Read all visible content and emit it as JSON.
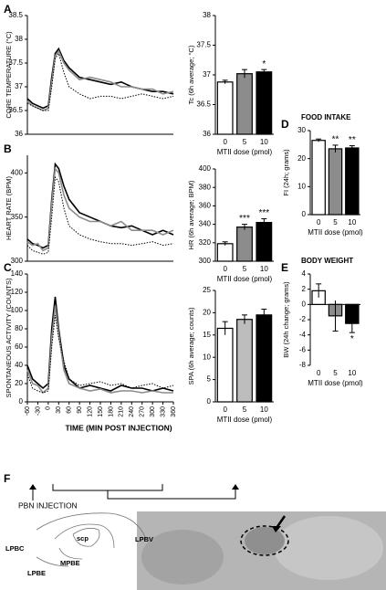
{
  "chart_data": [
    {
      "panel": "A",
      "type": "line",
      "ylabel": "CORE TEMPERATURE (°C)",
      "x": [
        -60,
        -45,
        -30,
        -15,
        0,
        10,
        20,
        30,
        45,
        60,
        90,
        120,
        150,
        180,
        210,
        240,
        270,
        300,
        330,
        360
      ],
      "xlim": [
        -60,
        360
      ],
      "ylim": [
        36,
        38.5
      ],
      "yticks": [
        36,
        36.5,
        37,
        37.5,
        38,
        38.5
      ],
      "series": [
        {
          "color": "#000000",
          "line_style": "solid",
          "values": [
            36.75,
            36.65,
            36.6,
            36.55,
            36.6,
            37.2,
            37.7,
            37.8,
            37.55,
            37.4,
            37.2,
            37.15,
            37.1,
            37.05,
            37.1,
            37.0,
            36.95,
            36.9,
            36.9,
            36.85
          ]
        },
        {
          "color": "#8c8c8c",
          "line_style": "solid",
          "values": [
            36.7,
            36.6,
            36.55,
            36.5,
            36.55,
            37.1,
            37.65,
            37.75,
            37.5,
            37.35,
            37.15,
            37.2,
            37.15,
            37.1,
            37.0,
            37.0,
            36.95,
            36.95,
            36.85,
            36.9
          ]
        },
        {
          "color": "#000000",
          "line_style": "dotted",
          "values": [
            36.65,
            36.6,
            36.55,
            36.5,
            36.5,
            37.0,
            37.6,
            37.7,
            37.3,
            37.0,
            36.85,
            36.75,
            36.8,
            36.8,
            36.75,
            36.8,
            36.85,
            36.8,
            36.75,
            36.8
          ]
        }
      ]
    },
    {
      "type": "bar",
      "ylabel": "Tc (6h average; °C)",
      "xlabel": "MTII dose (pmol)",
      "categories": [
        "0",
        "5",
        "10"
      ],
      "values": [
        36.88,
        37.02,
        37.05
      ],
      "errors": [
        0.03,
        0.07,
        0.04
      ],
      "colors": [
        "#ffffff",
        "#8c8c8c",
        "#000000"
      ],
      "annotations": [
        null,
        null,
        "*"
      ],
      "ylim": [
        36,
        38
      ],
      "yticks": [
        36,
        36.5,
        37,
        37.5,
        38
      ]
    },
    {
      "panel": "B",
      "type": "line",
      "ylabel": "HEART RATE (BPM)",
      "x": [
        -60,
        -45,
        -30,
        -15,
        0,
        10,
        20,
        30,
        45,
        60,
        90,
        120,
        150,
        180,
        210,
        240,
        270,
        300,
        330,
        360
      ],
      "xlim": [
        -60,
        360
      ],
      "ylim": [
        300,
        420
      ],
      "yticks": [
        300,
        350,
        400
      ],
      "series": [
        {
          "color": "#000000",
          "line_style": "solid",
          "values": [
            325,
            320,
            318,
            315,
            318,
            370,
            410,
            405,
            385,
            370,
            355,
            350,
            345,
            340,
            338,
            340,
            335,
            330,
            335,
            330
          ]
        },
        {
          "color": "#8c8c8c",
          "line_style": "solid",
          "values": [
            322,
            318,
            320,
            312,
            315,
            365,
            405,
            400,
            375,
            360,
            350,
            345,
            345,
            340,
            345,
            335,
            335,
            335,
            330,
            335
          ]
        },
        {
          "color": "#000000",
          "line_style": "dotted",
          "values": [
            318,
            312,
            310,
            308,
            310,
            350,
            395,
            390,
            360,
            340,
            330,
            325,
            322,
            320,
            320,
            318,
            320,
            322,
            318,
            320
          ]
        }
      ]
    },
    {
      "type": "bar",
      "ylabel": "HR (6h average; BPM)",
      "xlabel": "MTII dose (pmol)",
      "categories": [
        "0",
        "5",
        "10"
      ],
      "values": [
        319,
        337,
        342
      ],
      "errors": [
        2,
        3,
        4
      ],
      "colors": [
        "#ffffff",
        "#8c8c8c",
        "#000000"
      ],
      "annotations": [
        null,
        "***",
        "***"
      ],
      "ylim": [
        300,
        400
      ],
      "yticks": [
        300,
        320,
        340,
        360,
        380,
        400
      ]
    },
    {
      "panel": "C",
      "type": "line",
      "ylabel": "SPONTANEOUS ACTIVITY (COUNTS)",
      "xlabel": "TIME (MIN POST INJECTION)",
      "x": [
        -60,
        -45,
        -30,
        -15,
        0,
        10,
        20,
        30,
        45,
        60,
        90,
        120,
        150,
        180,
        210,
        240,
        270,
        300,
        330,
        360
      ],
      "xlim": [
        -60,
        360
      ],
      "xticks": [
        -60,
        -30,
        0,
        30,
        60,
        90,
        120,
        150,
        180,
        210,
        240,
        270,
        300,
        330,
        360
      ],
      "ylim": [
        0,
        140
      ],
      "yticks": [
        0,
        20,
        40,
        60,
        80,
        100,
        120,
        140
      ],
      "series": [
        {
          "color": "#000000",
          "line_style": "solid",
          "values": [
            40,
            25,
            20,
            15,
            20,
            80,
            115,
            80,
            40,
            25,
            15,
            18,
            15,
            12,
            18,
            15,
            15,
            12,
            15,
            12
          ]
        },
        {
          "color": "#8c8c8c",
          "line_style": "solid",
          "values": [
            35,
            20,
            18,
            10,
            15,
            70,
            105,
            75,
            35,
            20,
            15,
            12,
            14,
            10,
            12,
            12,
            10,
            12,
            10,
            10
          ]
        },
        {
          "color": "#000000",
          "line_style": "dotted",
          "values": [
            30,
            15,
            12,
            10,
            12,
            60,
            95,
            70,
            45,
            25,
            18,
            20,
            22,
            18,
            20,
            15,
            18,
            20,
            15,
            18
          ]
        }
      ]
    },
    {
      "type": "bar",
      "ylabel": "SPA (6h average; counts)",
      "xlabel": "MTII dose (pmol)",
      "categories": [
        "0",
        "5",
        "10"
      ],
      "values": [
        16.5,
        18.5,
        19.5
      ],
      "errors": [
        1.5,
        1,
        1.3
      ],
      "colors": [
        "#ffffff",
        "#bdbdbd",
        "#000000"
      ],
      "ylim": [
        0,
        25
      ],
      "yticks": [
        0,
        5,
        10,
        15,
        20,
        25
      ]
    },
    {
      "panel": "D",
      "type": "bar",
      "title": "FOOD INTAKE",
      "ylabel": "FI (24h; grams)",
      "xlabel": "MTII dose (pmol)",
      "categories": [
        "0",
        "5",
        "10"
      ],
      "values": [
        26.5,
        23.5,
        23.8
      ],
      "errors": [
        0.5,
        1.3,
        0.8
      ],
      "colors": [
        "#ffffff",
        "#8c8c8c",
        "#000000"
      ],
      "annotations": [
        null,
        "**",
        "**"
      ],
      "ylim": [
        0,
        30
      ],
      "yticks": [
        0,
        10,
        20,
        30
      ]
    },
    {
      "panel": "E",
      "type": "bar",
      "title": "BODY WEIGHT",
      "ylabel": "BW (24h change; grams)",
      "xlabel": "MTII dose (pmol)",
      "categories": [
        "0",
        "5",
        "10"
      ],
      "values": [
        1.8,
        -1.5,
        -2.5
      ],
      "errors": [
        0.9,
        2,
        1.2
      ],
      "colors": [
        "#ffffff",
        "#8c8c8c",
        "#000000"
      ],
      "annotations": [
        null,
        null,
        "*"
      ],
      "ylim": [
        -8,
        4
      ],
      "yticks": [
        -8,
        -6,
        -4,
        -2,
        0,
        2,
        4
      ]
    }
  ],
  "diagram": {
    "panel": "F",
    "injection_label": "PBN INJECTION",
    "regions": [
      "LPBV",
      "LPBC",
      "scp",
      "MPBE",
      "LPBE"
    ]
  }
}
